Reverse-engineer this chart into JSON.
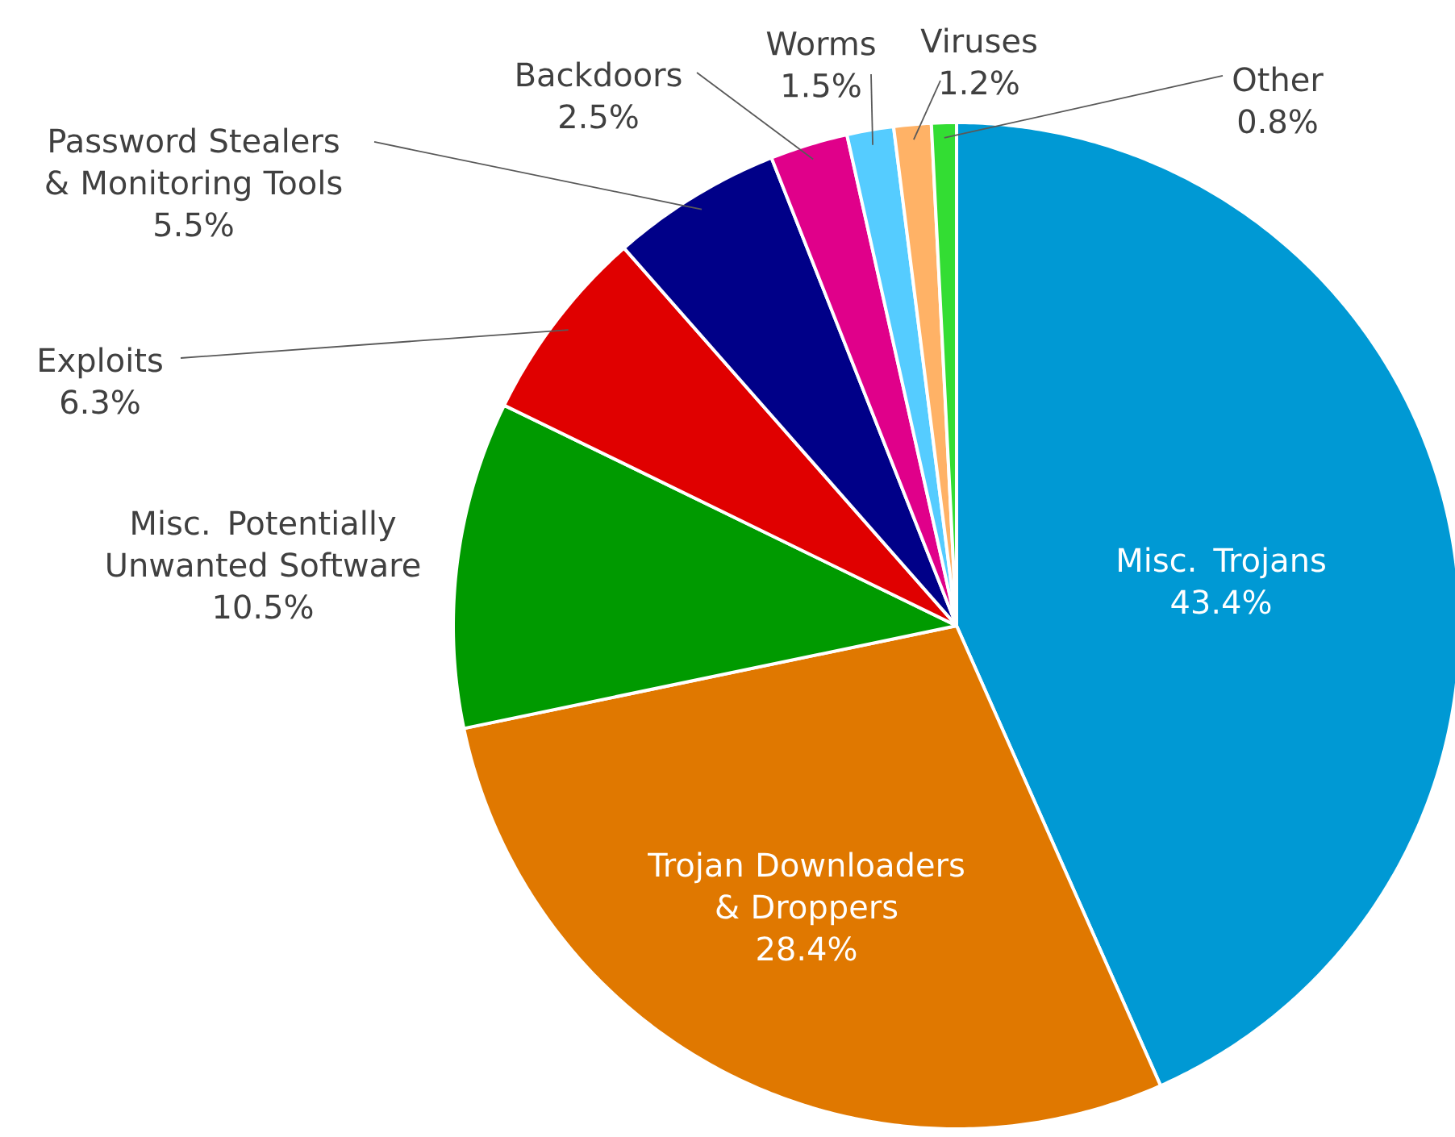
{
  "chart_data": {
    "type": "pie",
    "categories": [
      "Misc. Trojans",
      "Trojan Downloaders & Droppers",
      "Misc. Potentially Unwanted Software",
      "Exploits",
      "Password Stealers & Monitoring Tools",
      "Backdoors",
      "Worms",
      "Viruses",
      "Other"
    ],
    "values": [
      43.4,
      28.4,
      10.5,
      6.3,
      5.5,
      2.5,
      1.5,
      1.2,
      0.8
    ],
    "colors": [
      "#0099d4",
      "#e07800",
      "#009a00",
      "#e00000",
      "#000088",
      "#e0008a",
      "#55ccff",
      "#ffb266",
      "#33dd33"
    ],
    "value_labels": [
      "43.4%",
      "28.4%",
      "10.5%",
      "6.3%",
      "5.5%",
      "2.5%",
      "1.5%",
      "1.2%",
      "0.8%"
    ]
  }
}
